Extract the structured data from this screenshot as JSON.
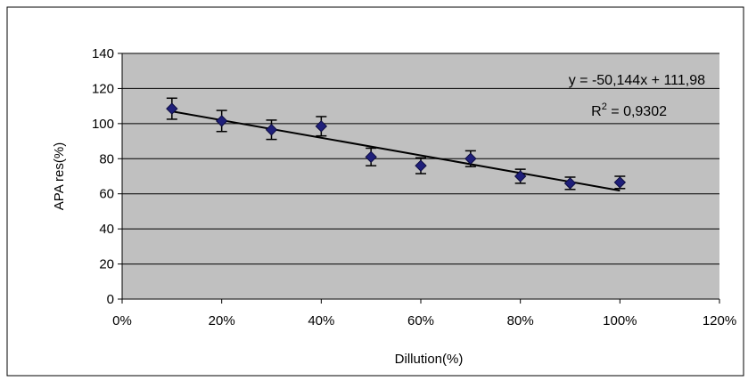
{
  "chart_data": {
    "type": "scatter",
    "title": "",
    "xlabel": "Dillution(%)",
    "ylabel": "APA res(%)",
    "xlim": [
      0,
      1.2
    ],
    "ylim": [
      0,
      140
    ],
    "x_ticks": [
      0,
      0.2,
      0.4,
      0.6,
      0.8,
      1.0,
      1.2
    ],
    "x_tick_labels": [
      "0%",
      "20%",
      "40%",
      "60%",
      "80%",
      "100%",
      "120%"
    ],
    "y_ticks": [
      0,
      20,
      40,
      60,
      80,
      100,
      120,
      140
    ],
    "y_tick_labels": [
      "0",
      "20",
      "40",
      "60",
      "80",
      "100",
      "120",
      "140"
    ],
    "grid": "horizontal",
    "series": [
      {
        "x": [
          0.1,
          0.2,
          0.3,
          0.4,
          0.5,
          0.6,
          0.7,
          0.8,
          0.9,
          1.0
        ],
        "y": [
          108.5,
          101.5,
          96.5,
          98.5,
          81,
          76,
          80,
          70,
          66,
          66.5
        ],
        "error": [
          6,
          6,
          5.5,
          5.5,
          5,
          4.5,
          4.5,
          4,
          3.5,
          3.5
        ],
        "color": "#1f1f7a",
        "marker": "diamond"
      }
    ],
    "trendline": {
      "slope": -50.144,
      "intercept": 111.98,
      "x_range": [
        0.1,
        1.0
      ],
      "equation": "y = -50,144x + 111,98",
      "r2_prefix": "R",
      "r2_sup": "2",
      "r2_suffix": " = 0,9302"
    },
    "plot_background": "#c0c0c0",
    "gridline_color": "#000000"
  }
}
